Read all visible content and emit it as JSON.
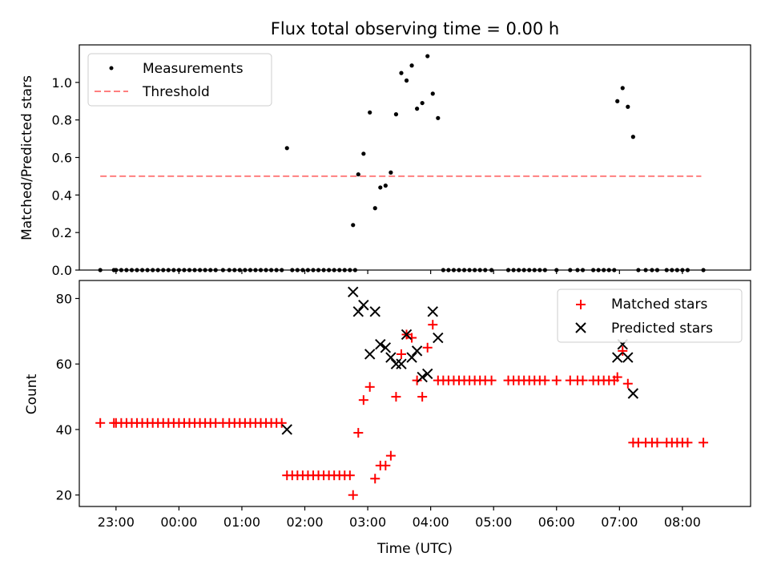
{
  "chart_data": [
    {
      "type": "scatter",
      "title": "Flux total observing time = 0.00 h",
      "xlabel": "",
      "ylabel": "Matched/Predicted stars",
      "xlim": [
        "22:25",
        "09:05"
      ],
      "ylim": [
        0,
        1.2
      ],
      "yticks": [
        "0.0",
        "0.2",
        "0.4",
        "0.6",
        "0.8",
        "1.0"
      ],
      "grid": false,
      "legend_position": "top-left",
      "threshold": {
        "name": "Threshold",
        "value": 0.5,
        "x_start": "22:45",
        "x_end": "08:18",
        "color": "#ff7f7f",
        "style": "dashed"
      },
      "series": [
        {
          "name": "Measurements",
          "color": "#000000",
          "marker": "dot",
          "points": [
            [
              "22:45",
              0.0
            ],
            [
              "22:58",
              0.0
            ],
            [
              "23:00",
              0.0
            ],
            [
              "23:05",
              0.0
            ],
            [
              "23:10",
              0.0
            ],
            [
              "23:15",
              0.0
            ],
            [
              "23:20",
              0.0
            ],
            [
              "23:25",
              0.0
            ],
            [
              "23:30",
              0.0
            ],
            [
              "23:35",
              0.0
            ],
            [
              "23:40",
              0.0
            ],
            [
              "23:45",
              0.0
            ],
            [
              "23:50",
              0.0
            ],
            [
              "23:55",
              0.0
            ],
            [
              "00:00",
              0.0
            ],
            [
              "00:05",
              0.0
            ],
            [
              "00:10",
              0.0
            ],
            [
              "00:15",
              0.0
            ],
            [
              "00:20",
              0.0
            ],
            [
              "00:25",
              0.0
            ],
            [
              "00:30",
              0.0
            ],
            [
              "00:35",
              0.0
            ],
            [
              "00:42",
              0.0
            ],
            [
              "00:48",
              0.0
            ],
            [
              "00:53",
              0.0
            ],
            [
              "00:58",
              0.0
            ],
            [
              "01:03",
              0.0
            ],
            [
              "01:08",
              0.0
            ],
            [
              "01:13",
              0.0
            ],
            [
              "01:18",
              0.0
            ],
            [
              "01:23",
              0.0
            ],
            [
              "01:28",
              0.0
            ],
            [
              "01:33",
              0.0
            ],
            [
              "01:38",
              0.0
            ],
            [
              "01:43",
              0.65
            ],
            [
              "01:48",
              0.0
            ],
            [
              "01:53",
              0.0
            ],
            [
              "01:58",
              0.0
            ],
            [
              "02:03",
              0.0
            ],
            [
              "02:08",
              0.0
            ],
            [
              "02:13",
              0.0
            ],
            [
              "02:18",
              0.0
            ],
            [
              "02:23",
              0.0
            ],
            [
              "02:28",
              0.0
            ],
            [
              "02:33",
              0.0
            ],
            [
              "02:38",
              0.0
            ],
            [
              "02:43",
              0.0
            ],
            [
              "02:48",
              0.0
            ],
            [
              "02:46",
              0.24
            ],
            [
              "02:51",
              0.51
            ],
            [
              "02:56",
              0.62
            ],
            [
              "03:02",
              0.84
            ],
            [
              "03:07",
              0.33
            ],
            [
              "03:12",
              0.44
            ],
            [
              "03:17",
              0.45
            ],
            [
              "03:22",
              0.52
            ],
            [
              "03:27",
              0.83
            ],
            [
              "03:32",
              1.05
            ],
            [
              "03:37",
              1.01
            ],
            [
              "03:42",
              1.09
            ],
            [
              "03:47",
              0.86
            ],
            [
              "03:52",
              0.89
            ],
            [
              "03:57",
              1.14
            ],
            [
              "04:02",
              0.94
            ],
            [
              "04:07",
              0.81
            ],
            [
              "04:12",
              0.0
            ],
            [
              "04:17",
              0.0
            ],
            [
              "04:22",
              0.0
            ],
            [
              "04:27",
              0.0
            ],
            [
              "04:32",
              0.0
            ],
            [
              "04:37",
              0.0
            ],
            [
              "04:42",
              0.0
            ],
            [
              "04:47",
              0.0
            ],
            [
              "04:52",
              0.0
            ],
            [
              "04:58",
              0.0
            ],
            [
              "05:14",
              0.0
            ],
            [
              "05:19",
              0.0
            ],
            [
              "05:24",
              0.0
            ],
            [
              "05:29",
              0.0
            ],
            [
              "05:34",
              0.0
            ],
            [
              "05:39",
              0.0
            ],
            [
              "05:44",
              0.0
            ],
            [
              "05:49",
              0.0
            ],
            [
              "06:00",
              0.0
            ],
            [
              "06:13",
              0.0
            ],
            [
              "06:20",
              0.0
            ],
            [
              "06:25",
              0.0
            ],
            [
              "06:35",
              0.0
            ],
            [
              "06:40",
              0.0
            ],
            [
              "06:45",
              0.0
            ],
            [
              "06:50",
              0.0
            ],
            [
              "06:55",
              0.0
            ],
            [
              "06:58",
              0.9
            ],
            [
              "07:03",
              0.97
            ],
            [
              "07:08",
              0.87
            ],
            [
              "07:13",
              0.71
            ],
            [
              "07:18",
              0.0
            ],
            [
              "07:25",
              0.0
            ],
            [
              "07:31",
              0.0
            ],
            [
              "07:36",
              0.0
            ],
            [
              "07:45",
              0.0
            ],
            [
              "07:50",
              0.0
            ],
            [
              "07:55",
              0.0
            ],
            [
              "08:00",
              0.0
            ],
            [
              "08:05",
              0.0
            ],
            [
              "08:20",
              0.0
            ]
          ]
        }
      ]
    },
    {
      "type": "scatter",
      "title": "",
      "xlabel": "Time (UTC)",
      "ylabel": "Count",
      "xlim": [
        "22:25",
        "09:05"
      ],
      "ylim": [
        16.5,
        85.5
      ],
      "yticks": [
        "20",
        "40",
        "60",
        "80"
      ],
      "xticks": [
        "23:00",
        "00:00",
        "01:00",
        "02:00",
        "03:00",
        "04:00",
        "05:00",
        "06:00",
        "07:00",
        "08:00"
      ],
      "grid": false,
      "legend_position": "top-right",
      "series": [
        {
          "name": "Matched stars",
          "color": "#ff0000",
          "marker": "plus",
          "points": [
            [
              "22:45",
              42
            ],
            [
              "22:58",
              42
            ],
            [
              "23:00",
              42
            ],
            [
              "23:05",
              42
            ],
            [
              "23:10",
              42
            ],
            [
              "23:15",
              42
            ],
            [
              "23:20",
              42
            ],
            [
              "23:25",
              42
            ],
            [
              "23:30",
              42
            ],
            [
              "23:35",
              42
            ],
            [
              "23:40",
              42
            ],
            [
              "23:45",
              42
            ],
            [
              "23:50",
              42
            ],
            [
              "23:55",
              42
            ],
            [
              "00:00",
              42
            ],
            [
              "00:05",
              42
            ],
            [
              "00:10",
              42
            ],
            [
              "00:15",
              42
            ],
            [
              "00:20",
              42
            ],
            [
              "00:25",
              42
            ],
            [
              "00:30",
              42
            ],
            [
              "00:35",
              42
            ],
            [
              "00:42",
              42
            ],
            [
              "00:48",
              42
            ],
            [
              "00:53",
              42
            ],
            [
              "00:58",
              42
            ],
            [
              "01:03",
              42
            ],
            [
              "01:08",
              42
            ],
            [
              "01:13",
              42
            ],
            [
              "01:18",
              42
            ],
            [
              "01:23",
              42
            ],
            [
              "01:28",
              42
            ],
            [
              "01:33",
              42
            ],
            [
              "01:38",
              42
            ],
            [
              "01:43",
              26
            ],
            [
              "01:48",
              26
            ],
            [
              "01:53",
              26
            ],
            [
              "01:58",
              26
            ],
            [
              "02:03",
              26
            ],
            [
              "02:08",
              26
            ],
            [
              "02:13",
              26
            ],
            [
              "02:18",
              26
            ],
            [
              "02:23",
              26
            ],
            [
              "02:28",
              26
            ],
            [
              "02:33",
              26
            ],
            [
              "02:38",
              26
            ],
            [
              "02:43",
              26
            ],
            [
              "02:46",
              20
            ],
            [
              "02:51",
              39
            ],
            [
              "02:56",
              49
            ],
            [
              "03:02",
              53
            ],
            [
              "03:07",
              25
            ],
            [
              "03:12",
              29
            ],
            [
              "03:17",
              29
            ],
            [
              "03:22",
              32
            ],
            [
              "03:27",
              50
            ],
            [
              "03:32",
              63
            ],
            [
              "03:37",
              69
            ],
            [
              "03:42",
              68
            ],
            [
              "03:47",
              55
            ],
            [
              "03:52",
              50
            ],
            [
              "03:57",
              65
            ],
            [
              "04:02",
              72
            ],
            [
              "04:07",
              55
            ],
            [
              "04:12",
              55
            ],
            [
              "04:17",
              55
            ],
            [
              "04:22",
              55
            ],
            [
              "04:27",
              55
            ],
            [
              "04:32",
              55
            ],
            [
              "04:37",
              55
            ],
            [
              "04:42",
              55
            ],
            [
              "04:47",
              55
            ],
            [
              "04:52",
              55
            ],
            [
              "04:58",
              55
            ],
            [
              "05:14",
              55
            ],
            [
              "05:19",
              55
            ],
            [
              "05:24",
              55
            ],
            [
              "05:29",
              55
            ],
            [
              "05:34",
              55
            ],
            [
              "05:39",
              55
            ],
            [
              "05:44",
              55
            ],
            [
              "05:49",
              55
            ],
            [
              "06:00",
              55
            ],
            [
              "06:13",
              55
            ],
            [
              "06:20",
              55
            ],
            [
              "06:25",
              55
            ],
            [
              "06:35",
              55
            ],
            [
              "06:40",
              55
            ],
            [
              "06:45",
              55
            ],
            [
              "06:50",
              55
            ],
            [
              "06:55",
              55
            ],
            [
              "06:58",
              56
            ],
            [
              "07:03",
              64
            ],
            [
              "07:08",
              54
            ],
            [
              "07:13",
              36
            ],
            [
              "07:18",
              36
            ],
            [
              "07:25",
              36
            ],
            [
              "07:31",
              36
            ],
            [
              "07:36",
              36
            ],
            [
              "07:45",
              36
            ],
            [
              "07:50",
              36
            ],
            [
              "07:55",
              36
            ],
            [
              "08:00",
              36
            ],
            [
              "08:05",
              36
            ],
            [
              "08:20",
              36
            ]
          ]
        },
        {
          "name": "Predicted stars",
          "color": "#000000",
          "marker": "x",
          "points": [
            [
              "01:43",
              40
            ],
            [
              "02:46",
              82
            ],
            [
              "02:51",
              76
            ],
            [
              "02:56",
              78
            ],
            [
              "03:02",
              63
            ],
            [
              "03:07",
              76
            ],
            [
              "03:12",
              66
            ],
            [
              "03:17",
              65
            ],
            [
              "03:22",
              62
            ],
            [
              "03:27",
              60
            ],
            [
              "03:32",
              60
            ],
            [
              "03:37",
              69
            ],
            [
              "03:42",
              62
            ],
            [
              "03:47",
              64
            ],
            [
              "03:52",
              56
            ],
            [
              "03:57",
              57
            ],
            [
              "04:02",
              76
            ],
            [
              "04:07",
              68
            ],
            [
              "06:58",
              62
            ],
            [
              "07:03",
              66
            ],
            [
              "07:08",
              62
            ],
            [
              "07:13",
              51
            ]
          ]
        }
      ]
    }
  ]
}
